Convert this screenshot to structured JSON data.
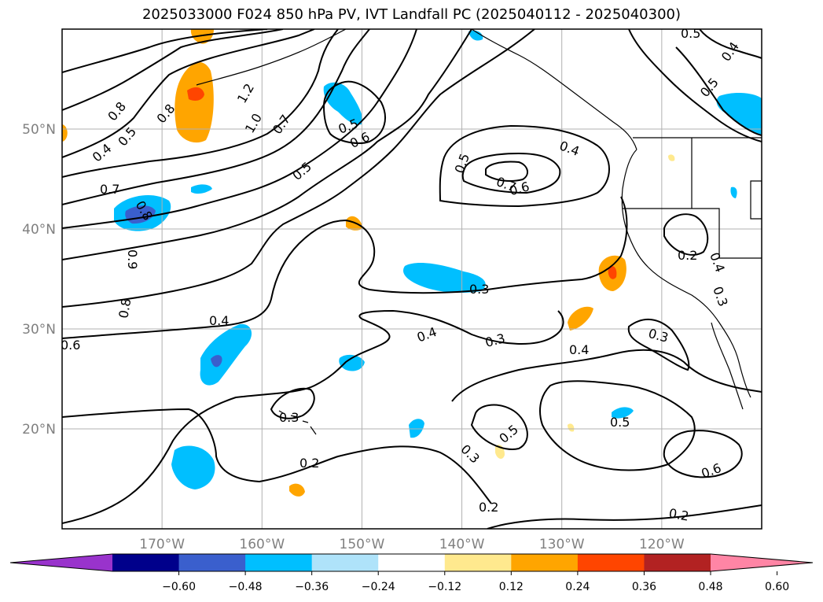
{
  "title": "2025033000 F024 850 hPa PV, IVT Landfall PC (2025040112 - 2025040300)",
  "map": {
    "lon_range": [
      -180,
      -110
    ],
    "lat_range": [
      10,
      60
    ],
    "lon_ticks": [
      {
        "value": -170,
        "label": "170°W"
      },
      {
        "value": -160,
        "label": "160°W"
      },
      {
        "value": -150,
        "label": "150°W"
      },
      {
        "value": -140,
        "label": "140°W"
      },
      {
        "value": -130,
        "label": "130°W"
      },
      {
        "value": -120,
        "label": "120°W"
      }
    ],
    "lat_ticks": [
      {
        "value": 20,
        "label": "20°N"
      },
      {
        "value": 30,
        "label": "30°N"
      },
      {
        "value": 40,
        "label": "40°N"
      },
      {
        "value": 50,
        "label": "50°N"
      }
    ],
    "gridlines": true,
    "contour_labels": [
      "0.5",
      "0.4",
      "0.5",
      "0.8",
      "1.2",
      "1.0",
      "0.7",
      "0.8",
      "0.5",
      "0.4",
      "0.7",
      "0.8",
      "0.9",
      "0.8",
      "0.6",
      "0.4",
      "0.5",
      "0.6",
      "0.5",
      "0.4",
      "0.7",
      "0.6",
      "0.5",
      "0.4",
      "0.3",
      "0.3",
      "0.4",
      "0.3",
      "0.4",
      "0.3",
      "0.2",
      "0.3",
      "0.2",
      "0.5",
      "0.3",
      "0.5",
      "0.2",
      "0.2",
      "0.6",
      "0.2",
      "0.3",
      "0.2",
      "0.2",
      "0.5"
    ]
  },
  "colorbar": {
    "ticks": [
      "−0.60",
      "−0.48",
      "−0.36",
      "−0.24",
      "−0.12",
      "0.12",
      "0.24",
      "0.36",
      "0.48",
      "0.60"
    ],
    "colors": [
      "#9933cc",
      "#00008b",
      "#3a5fcd",
      "#00bfff",
      "#afe3fa",
      "#ffffff",
      "#ffe98e",
      "#ffa500",
      "#ff4500",
      "#b22222",
      "#ff85a5"
    ]
  }
}
